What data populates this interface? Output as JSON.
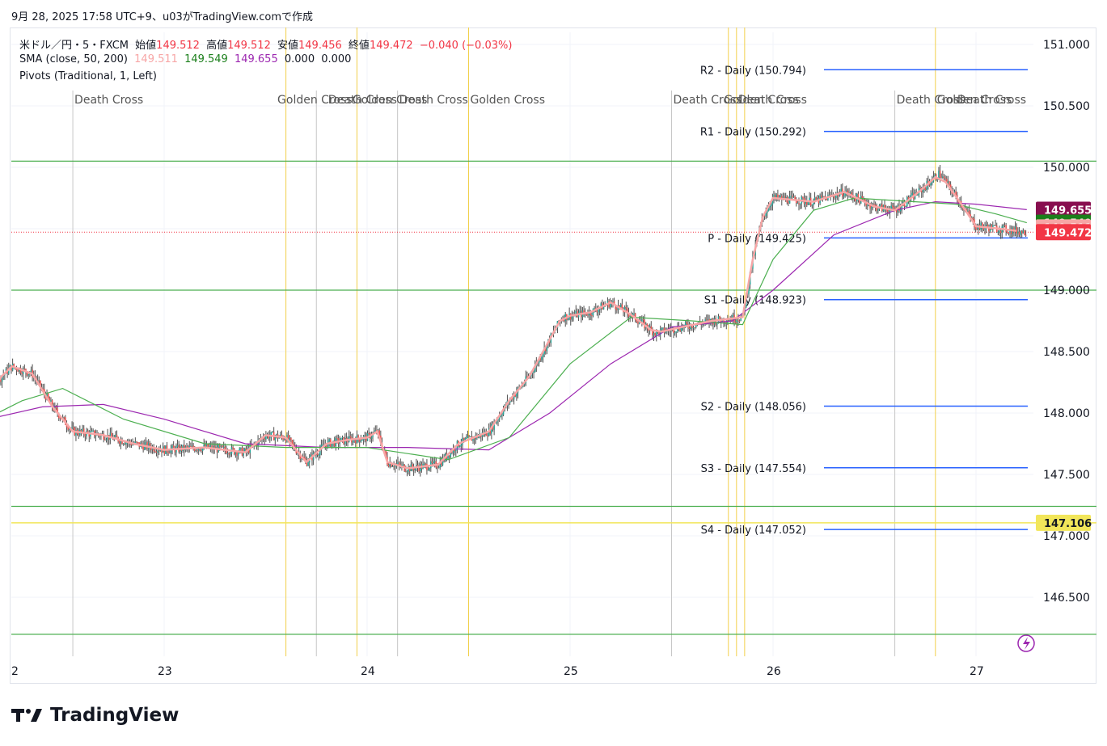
{
  "header": {
    "published": "9月 28, 2025 17:58 UTC+9、u03がTradingView.comで作成"
  },
  "legend": {
    "symbol": "米ドル／円・5・FXCM",
    "open_label": "始値",
    "open": "149.512",
    "high_label": "高値",
    "high": "149.512",
    "low_label": "安値",
    "low": "149.456",
    "close_label": "終値",
    "close": "149.472",
    "change": "−0.040 (−0.03%)",
    "sma_label": "SMA (close, 50, 200)",
    "sma_v1": "149.511",
    "sma_v2": "149.549",
    "sma_v3": "149.655",
    "sma_v4": "0.000",
    "sma_v5": "0.000",
    "pivots_label": "Pivots (Traditional, 1, Left)"
  },
  "colors": {
    "up": "#26a69a",
    "down": "#ef5350",
    "candle": "#505050",
    "sma_fast": "#f7a6a6",
    "sma_mid": "#4caf50",
    "sma_slow": "#9c27b0",
    "pivot": "#2962ff",
    "green_level": "#4caf50",
    "yellow_level": "#f2e65a",
    "vline_yellow": "#f2d04b",
    "vline_grey": "#c7c7c7",
    "last_price": "#f23645"
  },
  "chart_data": {
    "type": "candlestick",
    "symbol": "USDJPY 5m FXCM",
    "x_tick_labels": [
      "2",
      "23",
      "24",
      "25",
      "26",
      "27"
    ],
    "y_tick_labels": [
      "151.000",
      "150.500",
      "150.000",
      "149.500",
      "149.000",
      "148.500",
      "148.000",
      "147.500",
      "147.000",
      "146.500"
    ],
    "ylim": [
      146.2,
      151.2
    ],
    "price_path": [
      [
        22.0,
        147.9
      ],
      [
        22.1,
        148.05
      ],
      [
        22.2,
        148.3
      ],
      [
        22.25,
        148.38
      ],
      [
        22.35,
        148.32
      ],
      [
        22.45,
        148.05
      ],
      [
        22.55,
        147.85
      ],
      [
        22.7,
        147.82
      ],
      [
        22.85,
        147.75
      ],
      [
        23.0,
        147.7
      ],
      [
        23.2,
        147.72
      ],
      [
        23.4,
        147.68
      ],
      [
        23.5,
        147.82
      ],
      [
        23.6,
        147.8
      ],
      [
        23.7,
        147.6
      ],
      [
        23.8,
        147.75
      ],
      [
        23.9,
        147.78
      ],
      [
        24.0,
        147.8
      ],
      [
        24.05,
        147.85
      ],
      [
        24.1,
        147.6
      ],
      [
        24.2,
        147.55
      ],
      [
        24.35,
        147.58
      ],
      [
        24.45,
        147.75
      ],
      [
        24.6,
        147.85
      ],
      [
        24.7,
        148.1
      ],
      [
        24.8,
        148.3
      ],
      [
        24.9,
        148.6
      ],
      [
        24.96,
        148.78
      ],
      [
        25.1,
        148.82
      ],
      [
        25.2,
        148.9
      ],
      [
        25.3,
        148.8
      ],
      [
        25.42,
        148.65
      ],
      [
        25.55,
        148.7
      ],
      [
        25.7,
        148.75
      ],
      [
        25.85,
        148.78
      ],
      [
        25.9,
        149.25
      ],
      [
        25.95,
        149.6
      ],
      [
        26.0,
        149.75
      ],
      [
        26.2,
        149.72
      ],
      [
        26.35,
        149.8
      ],
      [
        26.5,
        149.68
      ],
      [
        26.6,
        149.65
      ],
      [
        26.72,
        149.8
      ],
      [
        26.82,
        149.95
      ],
      [
        26.92,
        149.72
      ],
      [
        27.0,
        149.52
      ],
      [
        27.12,
        149.5
      ],
      [
        27.25,
        149.472
      ]
    ],
    "sma_50": [
      [
        22.0,
        147.85
      ],
      [
        22.3,
        148.1
      ],
      [
        22.5,
        148.2
      ],
      [
        22.8,
        147.95
      ],
      [
        23.2,
        147.75
      ],
      [
        23.6,
        147.72
      ],
      [
        24.0,
        147.72
      ],
      [
        24.4,
        147.62
      ],
      [
        24.7,
        147.8
      ],
      [
        25.0,
        148.4
      ],
      [
        25.3,
        148.78
      ],
      [
        25.6,
        148.75
      ],
      [
        25.85,
        148.72
      ],
      [
        26.0,
        149.25
      ],
      [
        26.2,
        149.65
      ],
      [
        26.4,
        149.75
      ],
      [
        26.7,
        149.72
      ],
      [
        26.9,
        149.7
      ],
      [
        27.1,
        149.62
      ],
      [
        27.25,
        149.549
      ]
    ],
    "sma_200": [
      [
        22.0,
        147.9
      ],
      [
        22.4,
        148.05
      ],
      [
        22.7,
        148.07
      ],
      [
        23.0,
        147.95
      ],
      [
        23.4,
        147.75
      ],
      [
        23.8,
        147.72
      ],
      [
        24.2,
        147.72
      ],
      [
        24.6,
        147.7
      ],
      [
        24.9,
        148.0
      ],
      [
        25.2,
        148.4
      ],
      [
        25.5,
        148.7
      ],
      [
        25.8,
        148.75
      ],
      [
        26.0,
        149.0
      ],
      [
        26.3,
        149.45
      ],
      [
        26.6,
        149.65
      ],
      [
        26.8,
        149.72
      ],
      [
        27.0,
        149.7
      ],
      [
        27.25,
        149.655
      ]
    ],
    "pivots": [
      {
        "label": "R2 - Daily (150.794)",
        "value": 150.794
      },
      {
        "label": "R1 - Daily (150.292)",
        "value": 150.292
      },
      {
        "label": "P - Daily (149.425)",
        "value": 149.425
      },
      {
        "label": "S1 -Daily (148.923)",
        "value": 148.923
      },
      {
        "label": "S2 - Daily (148.056)",
        "value": 148.056
      },
      {
        "label": "S3 - Daily (147.554)",
        "value": 147.554
      },
      {
        "label": "S4 - Daily (147.052)",
        "value": 147.052
      }
    ],
    "horizontal_levels": [
      150.05,
      149.0,
      147.24,
      146.2
    ],
    "yellow_level": 147.106,
    "cross_labels": [
      {
        "text": "Death Cross",
        "x": 22.55
      },
      {
        "text": "Golden Cross",
        "x": 23.55
      },
      {
        "text": "Death Cross",
        "x": 23.8
      },
      {
        "text": "Golden Cross",
        "x": 23.92
      },
      {
        "text": "Death Cross",
        "x": 24.15
      },
      {
        "text": "Golden Cross",
        "x": 24.5
      },
      {
        "text": "Death Cross",
        "x": 25.5
      },
      {
        "text": "Golden Cross",
        "x": 25.75
      },
      {
        "text": "Death Cross",
        "x": 25.82
      },
      {
        "text": "Death Cross",
        "x": 26.6
      },
      {
        "text": "Golden Cross",
        "x": 26.8
      },
      {
        "text": "Death Cross",
        "x": 26.9
      }
    ],
    "yellow_vlines": [
      23.6,
      23.95,
      24.5,
      25.78,
      25.82,
      25.86,
      26.8
    ],
    "grey_vlines": [
      22.55,
      23.75,
      24.15,
      25.5,
      26.6
    ],
    "price_badges": [
      {
        "value": "149.655",
        "color": "#880e4f",
        "y": 149.655
      },
      {
        "value": "149.549",
        "color": "#1b7f1b",
        "y": 149.549
      },
      {
        "value": "149.511",
        "color": "#f7a6a6",
        "y": 149.511
      },
      {
        "value": "149.472",
        "color": "#f23645",
        "y": 149.472
      },
      {
        "value": "147.106",
        "color": "#f2e65a",
        "y": 147.106
      }
    ]
  },
  "footer": {
    "brand": "TradingView"
  }
}
